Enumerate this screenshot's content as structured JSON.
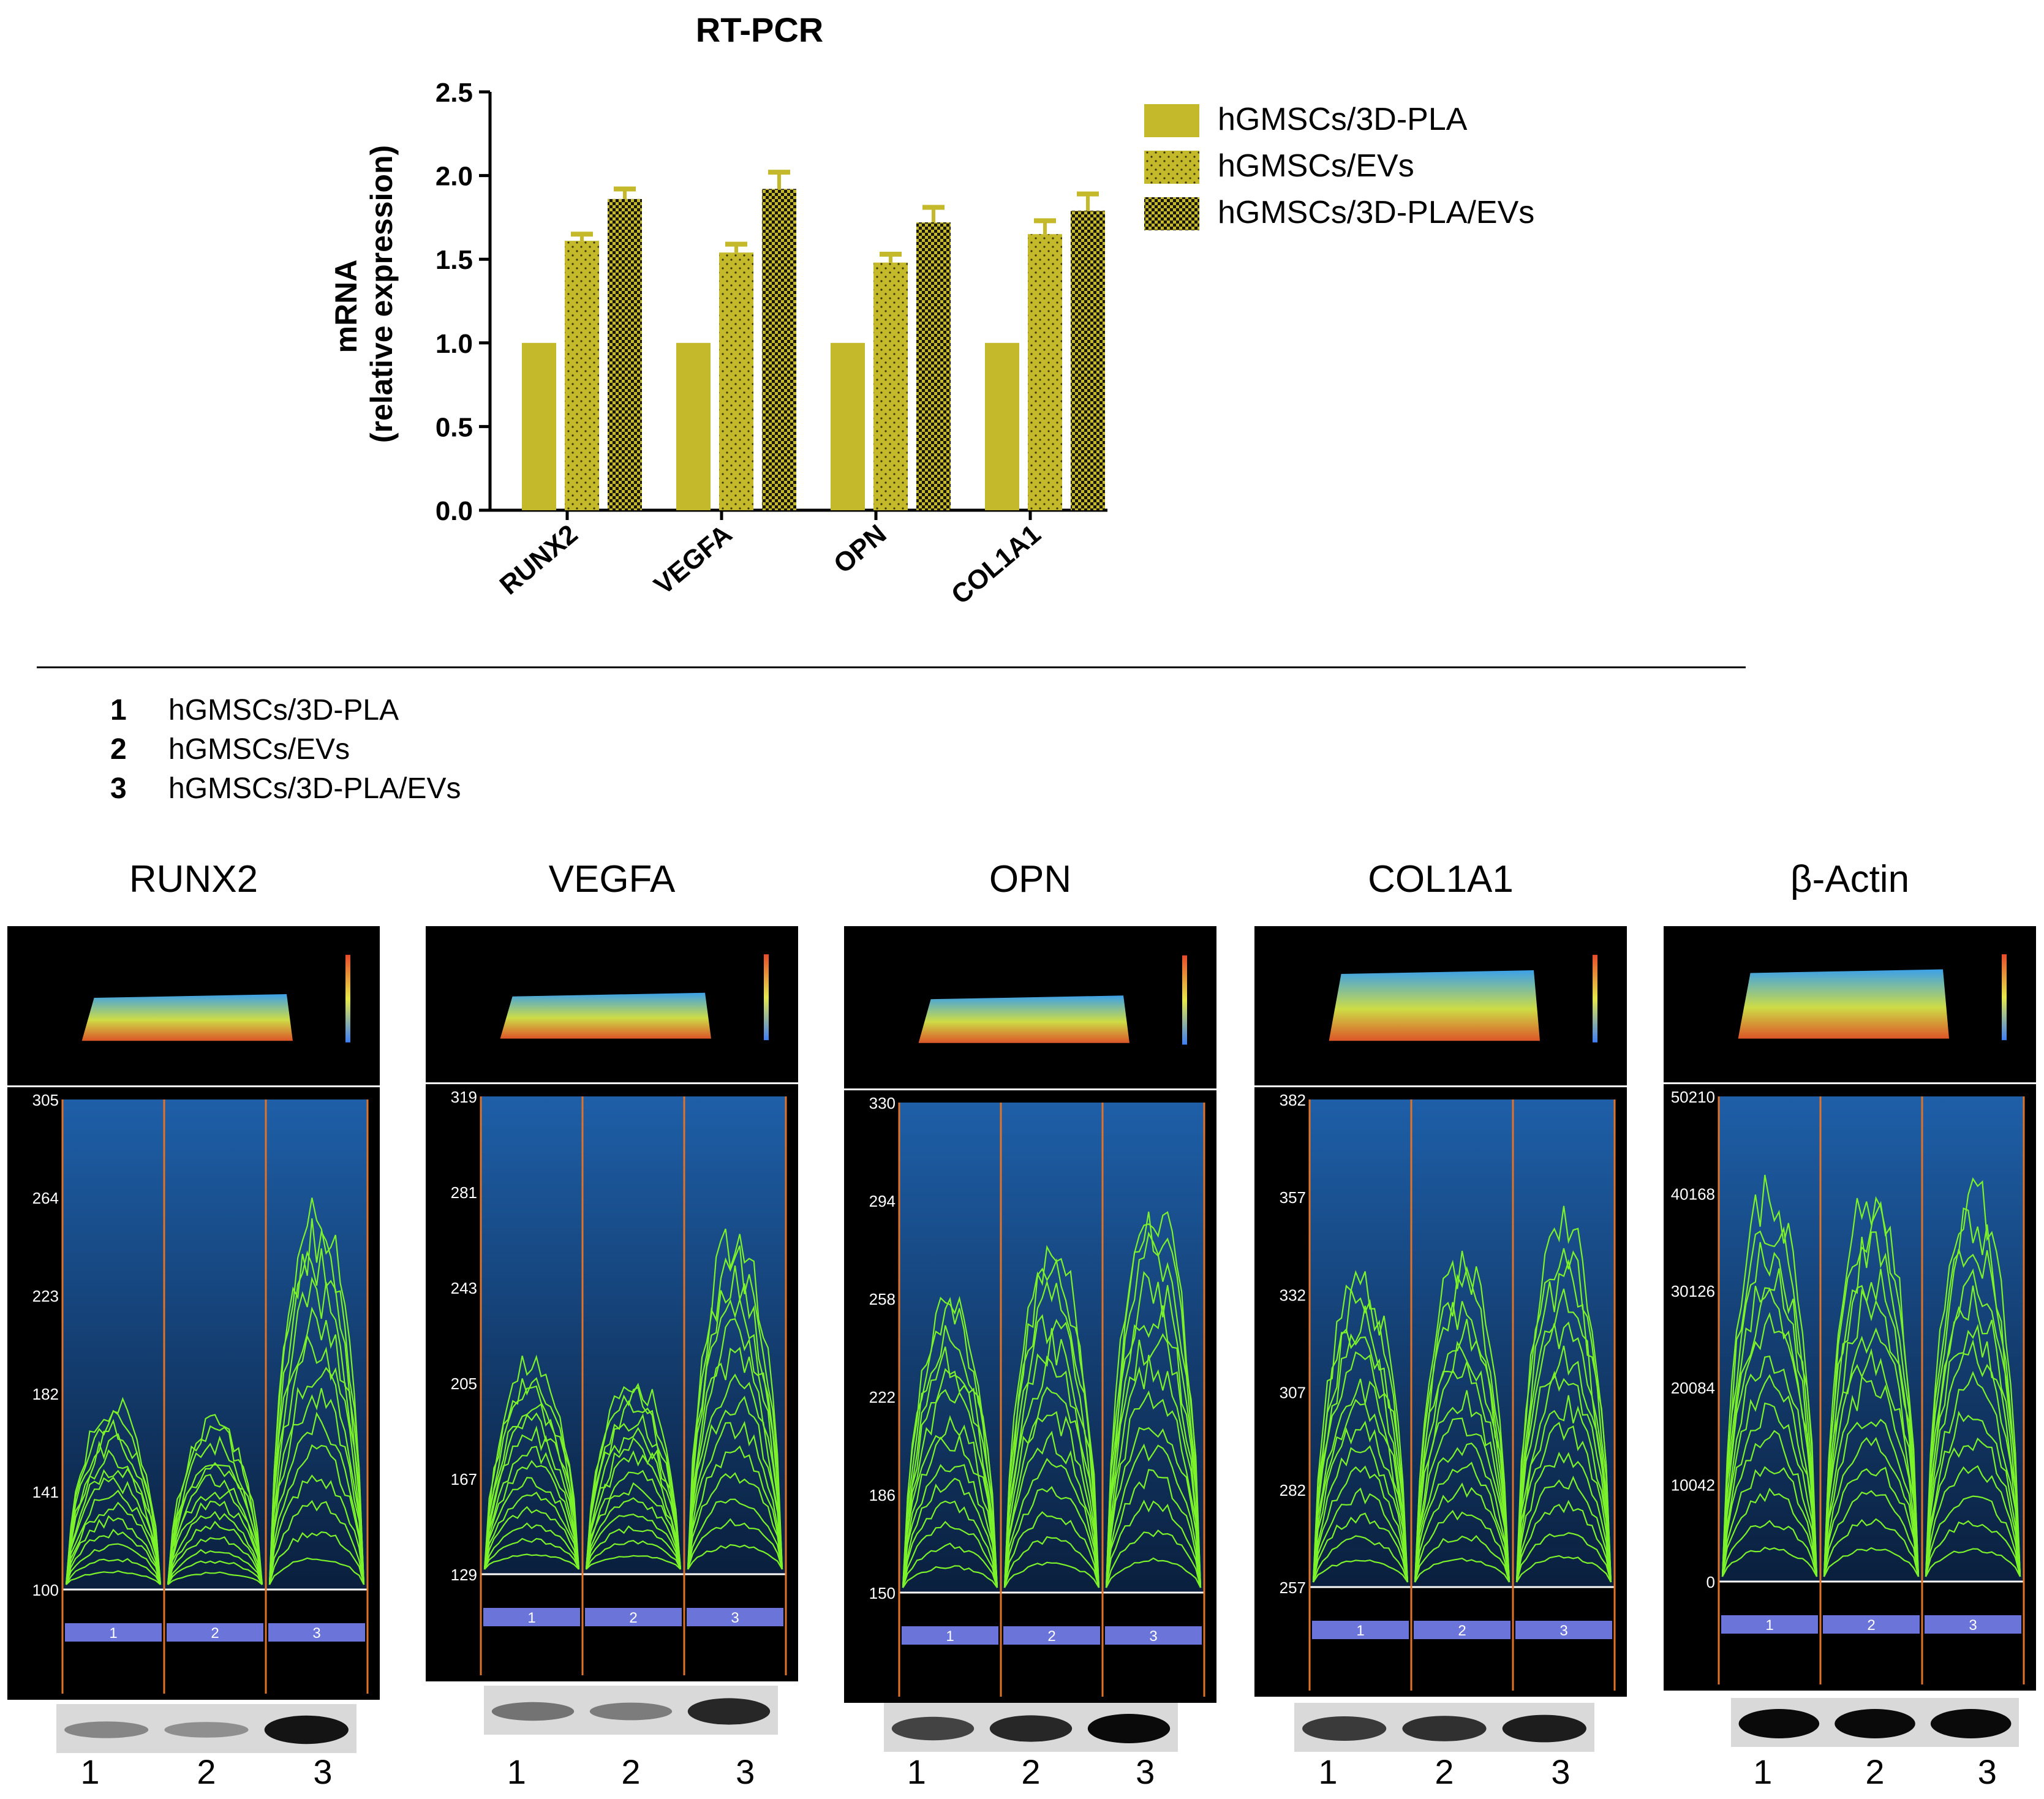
{
  "chart_data": {
    "type": "bar",
    "title": "RT-PCR",
    "ylabel": "mRNA",
    "ylabel2": "(relative expression)",
    "ylim": [
      0,
      2.5
    ],
    "yticks": [
      "0.0",
      "0.5",
      "1.0",
      "1.5",
      "2.0",
      "2.5"
    ],
    "categories": [
      "RUNX2",
      "VEGFA",
      "OPN",
      "COL1A1"
    ],
    "series": [
      {
        "name": "hGMSCs/3D-PLA",
        "values": [
          1.0,
          1.0,
          1.0,
          1.0
        ],
        "errors": [
          0,
          0,
          0,
          0
        ],
        "pattern": "solid"
      },
      {
        "name": "hGMSCs/EVs",
        "values": [
          1.61,
          1.54,
          1.48,
          1.65
        ],
        "errors": [
          0.04,
          0.05,
          0.05,
          0.08
        ],
        "pattern": "dots"
      },
      {
        "name": "hGMSCs/3D-PLA/EVs",
        "values": [
          1.86,
          1.92,
          1.72,
          1.79
        ],
        "errors": [
          0.06,
          0.1,
          0.09,
          0.1
        ],
        "pattern": "checker"
      }
    ],
    "bar_color": "#c4b92b",
    "legend_position": "right"
  },
  "key": [
    {
      "num": "1",
      "label": "hGMSCs/3D-PLA"
    },
    {
      "num": "2",
      "label": "hGMSCs/EVs"
    },
    {
      "num": "3",
      "label": "hGMSCs/3D-PLA/EVs"
    }
  ],
  "panels": [
    {
      "title": "RUNX2",
      "yticks": [
        "305",
        "264",
        "223",
        "182",
        "141",
        "100"
      ],
      "lanes": [
        "1",
        "2",
        "3"
      ],
      "lane_tabs": [
        "1",
        "2",
        "3"
      ],
      "band_intensity": [
        0.35,
        0.3,
        0.95
      ]
    },
    {
      "title": "VEGFA",
      "yticks": [
        "319",
        "281",
        "243",
        "205",
        "167",
        "129"
      ],
      "lanes": [
        "1",
        "2",
        "3"
      ],
      "lane_tabs": [
        "1",
        "2",
        "3"
      ],
      "band_intensity": [
        0.45,
        0.4,
        0.85
      ]
    },
    {
      "title": "OPN",
      "yticks": [
        "330",
        "294",
        "258",
        "222",
        "186",
        "150"
      ],
      "lanes": [
        "1",
        "2",
        "3"
      ],
      "lane_tabs": [
        "1",
        "2",
        "3"
      ],
      "band_intensity": [
        0.7,
        0.85,
        1.0
      ]
    },
    {
      "title": "COL1A1",
      "yticks": [
        "382",
        "357",
        "332",
        "307",
        "282",
        "257"
      ],
      "lanes": [
        "1",
        "2",
        "3"
      ],
      "lane_tabs": [
        "1",
        "2",
        "3"
      ],
      "band_intensity": [
        0.75,
        0.8,
        0.9
      ]
    },
    {
      "title": "β-Actin",
      "yticks": [
        "50210",
        "40168",
        "30126",
        "20084",
        "10042",
        "0"
      ],
      "lanes": [
        "1",
        "2",
        "3"
      ],
      "lane_tabs": [
        "1",
        "2",
        "3"
      ],
      "band_intensity": [
        1.0,
        1.0,
        1.0
      ]
    }
  ],
  "colors": {
    "profile_bg_top": "#1e5fa8",
    "profile_bg_bottom": "#0a1f3d",
    "trace": "#7cf22a",
    "lane_divider": "#e0732a",
    "lane_tab": "#6b74d8"
  }
}
